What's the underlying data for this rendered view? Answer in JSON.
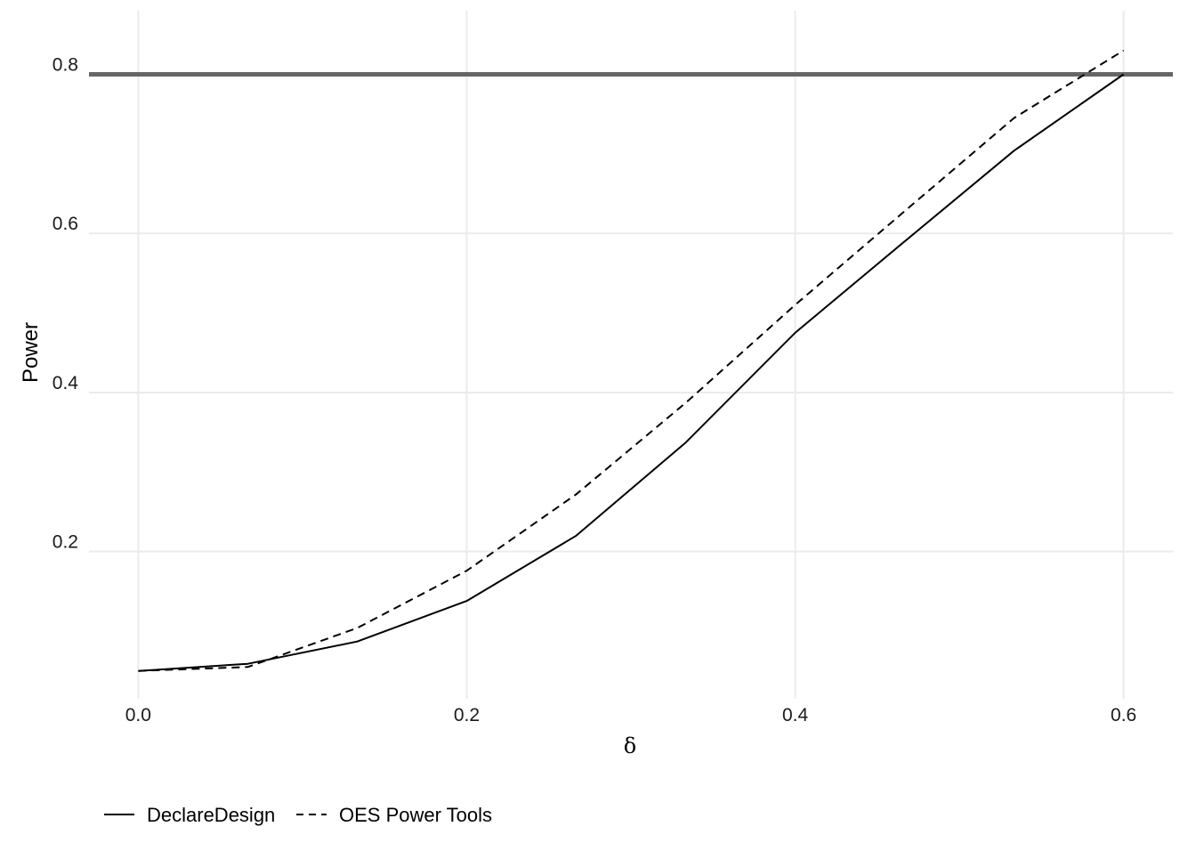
{
  "chart_data": {
    "type": "line",
    "title": "",
    "xlabel": "δ",
    "ylabel": "Power",
    "xlim": [
      -0.03,
      0.63
    ],
    "ylim": [
      0.015,
      0.88
    ],
    "x_ticks": [
      0.0,
      0.2,
      0.4,
      0.6
    ],
    "x_tick_labels": [
      "0.0",
      "0.2",
      "0.4",
      "0.6"
    ],
    "y_ticks": [
      0.2,
      0.4,
      0.6,
      0.8
    ],
    "y_tick_labels": [
      "0.2",
      "0.4",
      "0.6",
      "0.8"
    ],
    "grid": true,
    "legend_position": "bottom",
    "reference_line": {
      "axis": "y",
      "value": 0.8,
      "color": "#666666"
    },
    "series": [
      {
        "name": "DeclareDesign",
        "line_style": "solid",
        "color": "#000000",
        "x": [
          0.0,
          0.0667,
          0.1333,
          0.2,
          0.2667,
          0.3333,
          0.4,
          0.4667,
          0.5333,
          0.6
        ],
        "y": [
          0.05,
          0.059,
          0.087,
          0.138,
          0.22,
          0.337,
          0.475,
          0.59,
          0.704,
          0.8
        ]
      },
      {
        "name": "OES Power Tools",
        "line_style": "dashed",
        "color": "#000000",
        "x": [
          0.0,
          0.0667,
          0.1333,
          0.2,
          0.2667,
          0.3333,
          0.4,
          0.4667,
          0.5333,
          0.6
        ],
        "y": [
          0.05,
          0.055,
          0.104,
          0.176,
          0.272,
          0.387,
          0.51,
          0.628,
          0.745,
          0.83
        ]
      }
    ]
  }
}
